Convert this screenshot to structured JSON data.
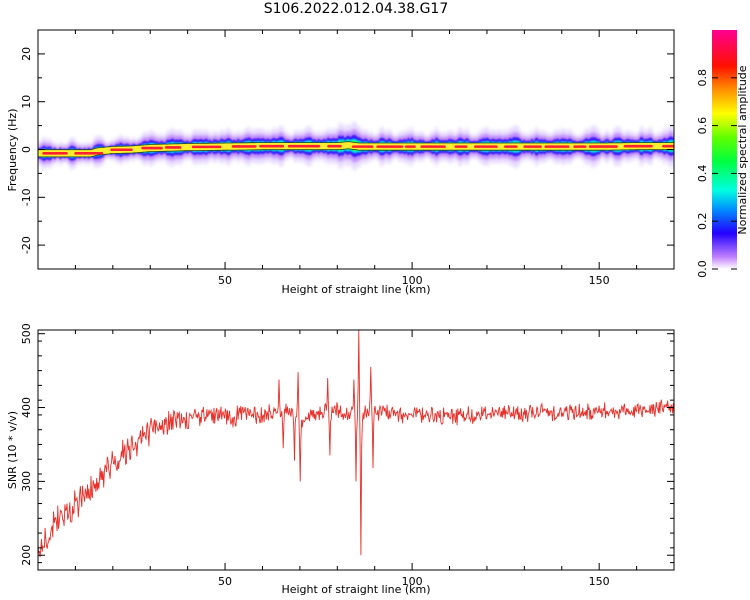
{
  "title": "S106.2022.012.04.38.G17",
  "chart_data": [
    {
      "type": "heatmap",
      "xlabel": "Height of straight line (km)",
      "ylabel": "Frequency (Hz)",
      "xlim": [
        0,
        170
      ],
      "ylim": [
        -25,
        25
      ],
      "xticks": [
        50,
        100,
        150
      ],
      "yticks": [
        -20,
        -10,
        0,
        10,
        20
      ],
      "colorbar": {
        "label": "Normalized spectral amplitude",
        "range": [
          0,
          1
        ],
        "ticks": [
          "0.0",
          "0.2",
          "0.4",
          "0.6",
          "0.8"
        ]
      },
      "ridge": {
        "x": [
          1,
          5,
          10,
          14,
          16,
          20,
          25,
          30,
          40,
          50,
          60,
          70,
          80,
          83,
          86,
          90,
          100,
          110,
          120,
          130,
          140,
          150,
          160,
          170
        ],
        "frequency": [
          -0.8,
          -0.8,
          -0.8,
          -0.8,
          -0.4,
          -0.1,
          0.0,
          0.3,
          0.5,
          0.6,
          0.7,
          0.7,
          0.7,
          0.9,
          0.6,
          0.6,
          0.6,
          0.6,
          0.6,
          0.6,
          0.6,
          0.6,
          0.7,
          0.7
        ]
      }
    },
    {
      "type": "line",
      "xlabel": "Height of straight line (km)",
      "ylabel": "SNR (10 * v/v)",
      "xlim": [
        0,
        170
      ],
      "ylim": [
        180,
        505
      ],
      "xticks": [
        50,
        100,
        150
      ],
      "yticks": [
        200,
        300,
        400,
        500
      ],
      "color": "#e8302a",
      "envelope": {
        "x": [
          0,
          2,
          5,
          10,
          15,
          20,
          25,
          30,
          35,
          40,
          50,
          60,
          65,
          68,
          70,
          75,
          80,
          83,
          85,
          86,
          87,
          90,
          95,
          100,
          110,
          120,
          130,
          140,
          150,
          160,
          170
        ],
        "mean": [
          205,
          225,
          245,
          268,
          295,
          325,
          350,
          370,
          380,
          385,
          390,
          390,
          395,
          395,
          380,
          392,
          395,
          388,
          395,
          392,
          390,
          395,
          392,
          390,
          388,
          392,
          393,
          393,
          395,
          397,
          400
        ]
      },
      "features": [
        {
          "x": 64.5,
          "y": 438
        },
        {
          "x": 65.5,
          "y": 345
        },
        {
          "x": 68.5,
          "y": 328
        },
        {
          "x": 69.5,
          "y": 448
        },
        {
          "x": 70.0,
          "y": 300
        },
        {
          "x": 77.5,
          "y": 440
        },
        {
          "x": 78.0,
          "y": 335
        },
        {
          "x": 84.5,
          "y": 438
        },
        {
          "x": 85.0,
          "y": 300
        },
        {
          "x": 85.8,
          "y": 505
        },
        {
          "x": 86.3,
          "y": 200
        },
        {
          "x": 89.0,
          "y": 455
        },
        {
          "x": 89.5,
          "y": 318
        }
      ]
    }
  ]
}
